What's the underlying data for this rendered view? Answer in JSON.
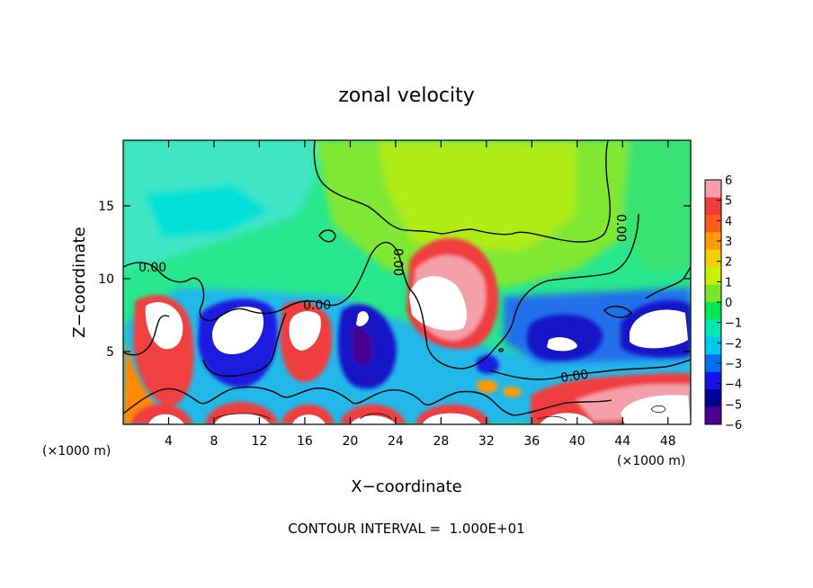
{
  "chart_data": {
    "type": "heatmap",
    "title": "zonal velocity",
    "xlabel": "X−coordinate",
    "ylabel": "Z−coordinate",
    "x_unit_left": "(×1000 m)",
    "x_unit_right": "(×1000 m)",
    "xlim": [
      0,
      50
    ],
    "ylim": [
      0,
      19.5
    ],
    "x_ticks": [
      "4",
      "8",
      "12",
      "16",
      "20",
      "24",
      "28",
      "32",
      "36",
      "40",
      "44",
      "48"
    ],
    "y_ticks": [
      "5",
      "10",
      "15"
    ],
    "colorbar": {
      "ticks": [
        "6",
        "5",
        "4",
        "3",
        "2",
        "1",
        "0",
        "−1",
        "−2",
        "−3",
        "−4",
        "−5",
        "−6"
      ],
      "colors": [
        "#f4a0a8",
        "#f03c3c",
        "#ff5a1a",
        "#ff9a00",
        "#f0d000",
        "#c8f000",
        "#78e628",
        "#00e650",
        "#00e6b4",
        "#00c8f0",
        "#0070f0",
        "#1414e6",
        "#000096",
        "#500090"
      ]
    },
    "contour_labels": [
      "0.00",
      "0.00",
      "0.00",
      "0.00",
      "0.00"
    ],
    "footnote": "CONTOUR INTERVAL =  1.000E+01"
  }
}
